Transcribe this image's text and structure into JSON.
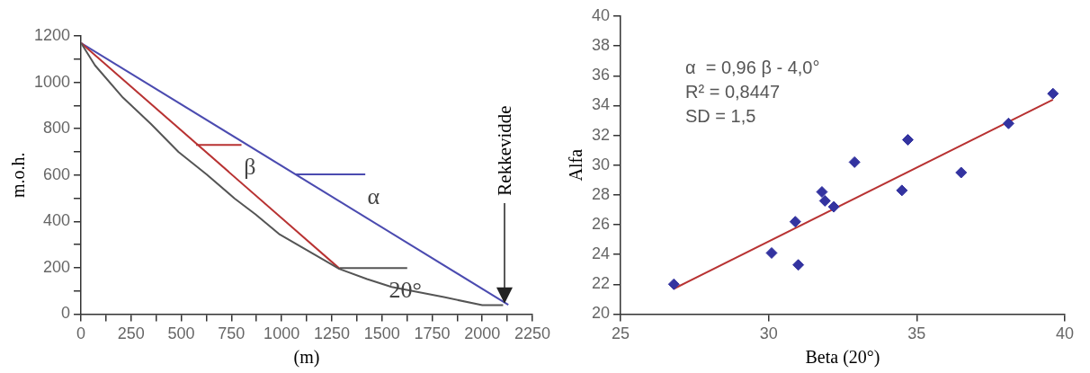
{
  "chart_data": [
    {
      "type": "line",
      "xlabel": "(m)",
      "ylabel": "m.o.h.",
      "xlim": [
        0,
        2250
      ],
      "ylim": [
        0,
        1200
      ],
      "xticks": [
        0,
        {
          "value": 125,
          "label": null
        },
        250,
        {
          "value": 375,
          "label": null
        },
        500,
        {
          "value": 625,
          "label": null
        },
        750,
        {
          "value": 875,
          "label": null
        },
        1000,
        {
          "value": 1125,
          "label": null
        },
        1250,
        {
          "value": 1375,
          "label": null
        },
        1500,
        {
          "value": 1625,
          "label": null
        },
        1750,
        {
          "value": 1875,
          "label": null
        },
        2000,
        {
          "value": 2125,
          "label": null
        },
        2250
      ],
      "yticks": [
        0,
        {
          "value": 100,
          "label": null
        },
        200,
        {
          "value": 300,
          "label": null
        },
        400,
        {
          "value": 500,
          "label": null
        },
        600,
        {
          "value": 700,
          "label": null
        },
        800,
        {
          "value": 900,
          "label": null
        },
        1000,
        {
          "value": 1100,
          "label": null
        },
        1200
      ],
      "grid": false,
      "legend": false,
      "line_style": "solid",
      "series": [
        {
          "color": "#555555",
          "x": [
            0,
            70,
            209,
            348,
            487,
            626,
            765,
            870,
            991,
            1113,
            1287,
            1426,
            1548,
            1809,
            2000,
            2104
          ],
          "values": [
            1170,
            1073,
            934,
            821,
            699,
            603,
            499,
            430,
            343,
            282,
            195,
            151,
            117,
            73,
            38,
            38
          ]
        },
        {
          "color": "#b83232",
          "x": [
            0,
            1290
          ],
          "values": [
            1170,
            195
          ]
        },
        {
          "color": "#4b4bb0",
          "x": [
            0,
            2130
          ],
          "values": [
            1170,
            40
          ]
        },
        {
          "color": "#b83232",
          "x": [
            574,
            800
          ],
          "values": [
            730,
            730
          ]
        },
        {
          "color": "#4b4bb0",
          "x": [
            1070,
            1417
          ],
          "values": [
            603,
            603
          ]
        },
        {
          "color": "#555555",
          "x": [
            1290,
            1626
          ],
          "values": [
            198,
            198
          ]
        }
      ],
      "annotations": [
        {
          "text": "β",
          "x": 800,
          "y": 730
        },
        {
          "text": "α",
          "x": 1417,
          "y": 603
        },
        {
          "text": "20°",
          "x": 1626,
          "y": 198
        }
      ],
      "ref_lines": [
        {
          "axis": "x",
          "value": 2113,
          "label": "Rekkevidde",
          "color": "#222222"
        }
      ]
    },
    {
      "type": "scatter",
      "xlabel": "Beta (20°)",
      "ylabel": "Alfa",
      "xlim": [
        25,
        40
      ],
      "ylim": [
        20,
        40
      ],
      "xticks": [
        25,
        30,
        35,
        40
      ],
      "yticks": [
        20,
        22,
        24,
        26,
        28,
        30,
        32,
        34,
        36,
        38,
        40
      ],
      "grid": false,
      "legend": false,
      "series": [
        {
          "color": "#3333a0",
          "marker": "diamond",
          "x": [
            26.8,
            30.1,
            31.0,
            30.9,
            31.8,
            31.9,
            32.2,
            32.9,
            34.5,
            34.7,
            36.5,
            38.1,
            39.6
          ],
          "values": [
            22.0,
            24.1,
            23.3,
            26.2,
            28.2,
            27.6,
            27.2,
            30.2,
            28.3,
            31.7,
            29.5,
            32.8,
            34.8
          ]
        },
        {
          "type": "line",
          "color": "#b83232",
          "x": [
            26.8,
            39.6
          ],
          "values": [
            21.7,
            34.4
          ]
        }
      ],
      "annotations": [
        "α  = 0,96 β - 4,0°",
        "R² = 0,8447",
        "SD = 1,5"
      ]
    }
  ]
}
